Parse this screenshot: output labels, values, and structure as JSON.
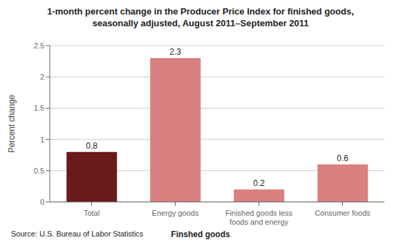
{
  "chart_data": {
    "type": "bar",
    "title": "1-month percent change in the Producer Price Index for finished goods,\nseasonally adjusted,  August 2011–September 2011",
    "categories": [
      "Total",
      "Energy goods",
      "Finished goods less\nfoods and energy",
      "Consumer foods"
    ],
    "values": [
      0.8,
      2.3,
      0.2,
      0.6
    ],
    "colors": [
      "#6b1a1a",
      "#d98080",
      "#d98080",
      "#d98080"
    ],
    "ylabel": "Percent change",
    "xlabel": "Finshed goods",
    "annotations": [
      "Source: U.S. Bureau of Labor Statistics"
    ],
    "ylim": [
      0,
      2.5
    ],
    "yticks": [
      0,
      0.5,
      1.0,
      1.5,
      2.0,
      2.5
    ],
    "grid": "y",
    "data_labels": true
  }
}
